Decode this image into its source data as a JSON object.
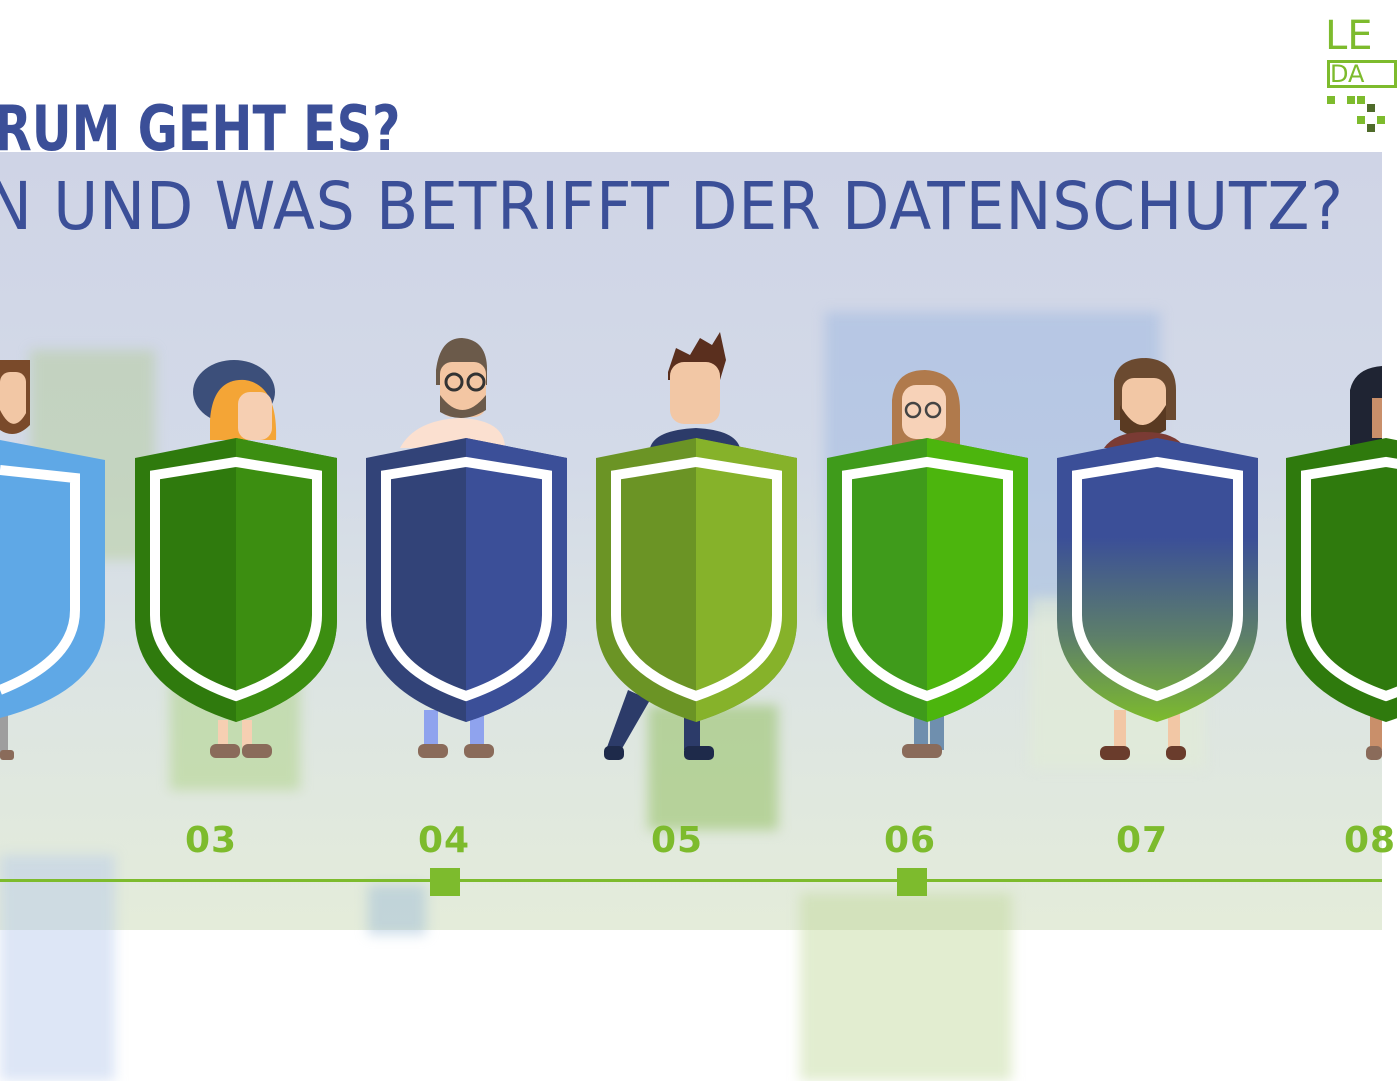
{
  "header": {
    "title_line1": "RUM GEHT ES?",
    "title_line2": "N UND WAS BETRIFFT DER DATENSCHUTZ?"
  },
  "logo": {
    "line1": "LE",
    "line2": "DA",
    "color": "#7dbb2d"
  },
  "timeline": {
    "labels": [
      "03",
      "04",
      "05",
      "06",
      "07",
      "08"
    ],
    "color": "#7dbb2d"
  },
  "people": [
    {
      "name": "man-beard-1-icon",
      "shield": "light-blue"
    },
    {
      "name": "woman-orange-hair-icon",
      "shield": "dark-green"
    },
    {
      "name": "man-glasses-beard-icon",
      "shield": "navy-blue"
    },
    {
      "name": "man-suit-icon",
      "shield": "olive-green"
    },
    {
      "name": "woman-glasses-icon",
      "shield": "bright-green"
    },
    {
      "name": "man-long-hair-beard-icon",
      "shield": "navy-to-green"
    },
    {
      "name": "woman-dark-hair-icon",
      "shield": "dark-green"
    }
  ],
  "colors": {
    "title": "#3b4f98",
    "accent": "#7dbb2d"
  }
}
